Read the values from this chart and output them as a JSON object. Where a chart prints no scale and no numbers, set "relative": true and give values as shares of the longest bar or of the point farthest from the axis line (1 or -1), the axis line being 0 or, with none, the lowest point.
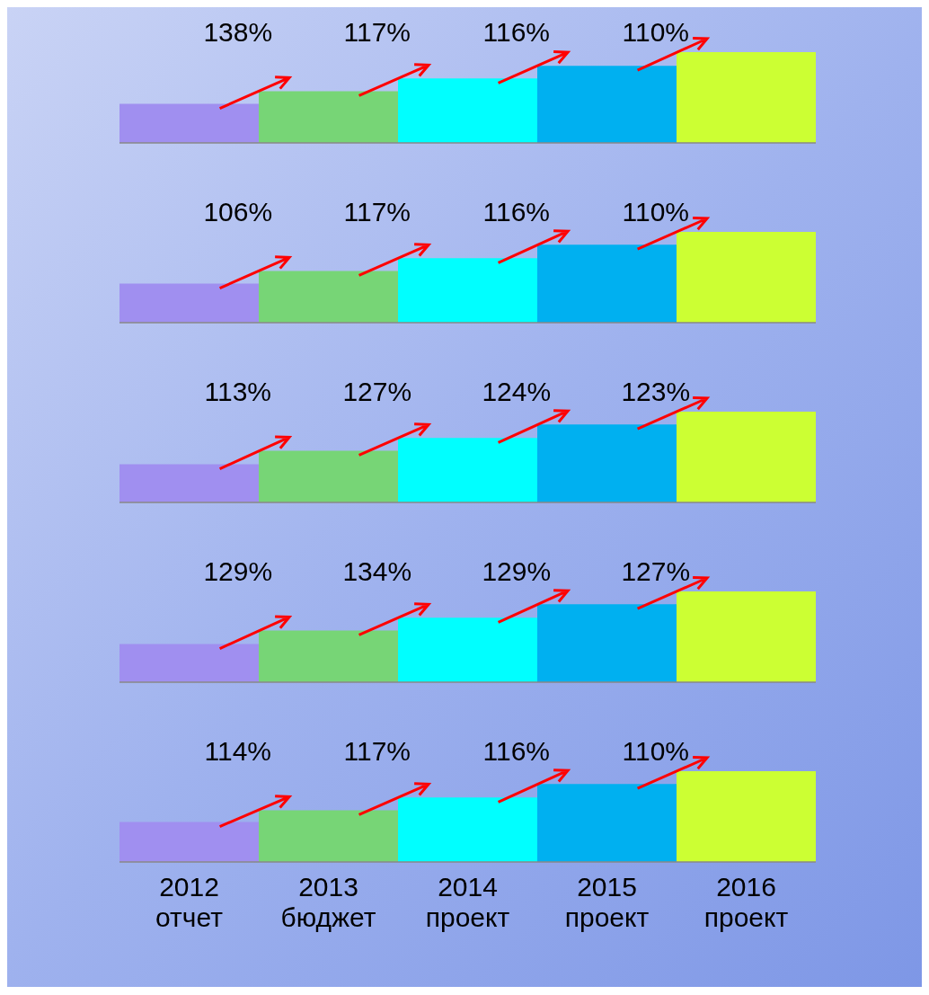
{
  "chart_data": [
    {
      "type": "bar",
      "relative": true,
      "categories": [
        null,
        null,
        null,
        null,
        null
      ],
      "values": [
        0.43,
        0.57,
        0.71,
        0.85,
        1
      ],
      "colors": [
        "#a08ff0",
        "#77d576",
        "#00ffff",
        "#00b0f0",
        "#ccff33"
      ],
      "annotations": [
        "138%",
        "117%",
        "116%",
        "110%"
      ],
      "tick_labels": false
    },
    {
      "type": "bar",
      "relative": true,
      "categories": [
        null,
        null,
        null,
        null,
        null
      ],
      "values": [
        0.43,
        0.57,
        0.71,
        0.86,
        1
      ],
      "colors": [
        "#a08ff0",
        "#77d576",
        "#00ffff",
        "#00b0f0",
        "#ccff33"
      ],
      "annotations": [
        "106%",
        "117%",
        "116%",
        "110%"
      ],
      "tick_labels": false
    },
    {
      "type": "bar",
      "relative": true,
      "categories": [
        null,
        null,
        null,
        null,
        null
      ],
      "values": [
        0.42,
        0.57,
        0.71,
        0.86,
        1
      ],
      "colors": [
        "#a08ff0",
        "#77d576",
        "#00ffff",
        "#00b0f0",
        "#ccff33"
      ],
      "annotations": [
        "113%",
        "127%",
        "124%",
        "123%"
      ],
      "tick_labels": false
    },
    {
      "type": "bar",
      "relative": true,
      "categories": [
        null,
        null,
        null,
        null,
        null
      ],
      "values": [
        0.42,
        0.57,
        0.71,
        0.86,
        1
      ],
      "colors": [
        "#a08ff0",
        "#77d576",
        "#00ffff",
        "#00b0f0",
        "#ccff33"
      ],
      "annotations": [
        "129%",
        "134%",
        "129%",
        "127%"
      ],
      "tick_labels": false
    },
    {
      "type": "bar",
      "relative": true,
      "categories": [
        "2012 отчет",
        "2013 бюджет",
        "2014 проект",
        "2015 проект",
        "2016 проект"
      ],
      "values": [
        0.44,
        0.57,
        0.71,
        0.86,
        1
      ],
      "colors": [
        "#a08ff0",
        "#77d576",
        "#00ffff",
        "#00b0f0",
        "#ccff33"
      ],
      "annotations": [
        "114%",
        "117%",
        "116%",
        "110%"
      ],
      "tick_labels": "x"
    }
  ]
}
